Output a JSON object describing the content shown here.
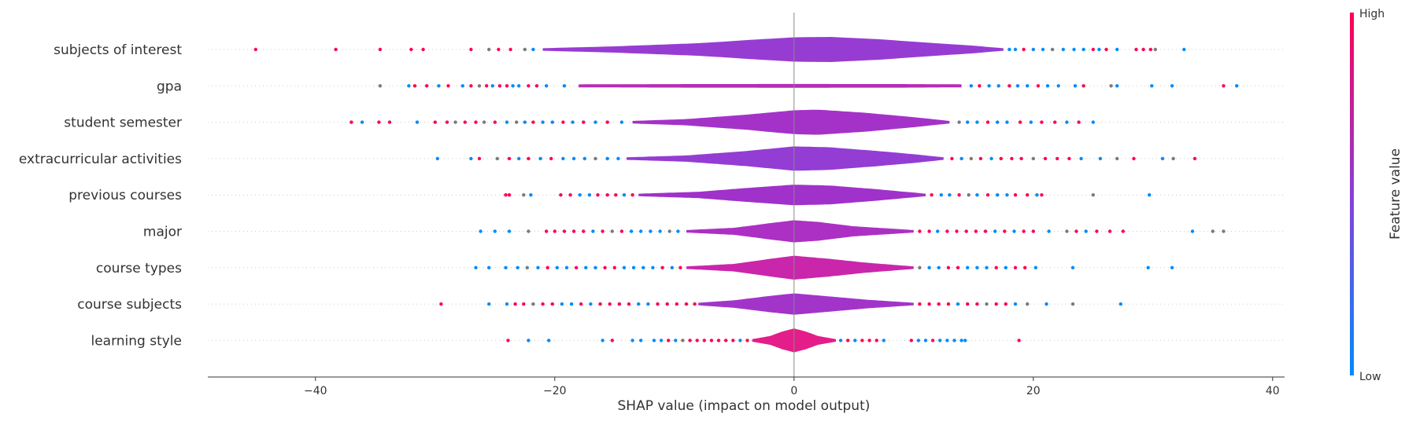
{
  "chart_data": {
    "type": "violin-summary",
    "title": "",
    "xlabel": "SHAP value (impact on model output)",
    "ylabel": "",
    "xlim": [
      -49,
      41
    ],
    "x_ticks": [
      -40,
      -20,
      0,
      20,
      40
    ],
    "x_tick_labels": [
      "−40",
      "−20",
      "0",
      "20",
      "40"
    ],
    "zero_line": true,
    "colorbar": {
      "title": "Feature value",
      "high_label": "High",
      "low_label": "Low",
      "low_color": "#008bfb",
      "high_color": "#ff0052"
    },
    "features": [
      {
        "name": "subjects of interest",
        "color": "#8e2bcf",
        "range": [
          -21,
          17.5
        ],
        "profile": [
          [
            -21,
            0.1
          ],
          [
            -15,
            0.25
          ],
          [
            -8,
            0.5
          ],
          [
            -3,
            0.8
          ],
          [
            0,
            0.97
          ],
          [
            3,
            1.0
          ],
          [
            7,
            0.82
          ],
          [
            11,
            0.55
          ],
          [
            15,
            0.3
          ],
          [
            17.5,
            0.1
          ]
        ],
        "low_outliers": [
          -45,
          -38.3,
          -34.6,
          -32,
          -31,
          -27,
          -25.5,
          -24.7,
          -23.7,
          -22.5,
          -21.8
        ],
        "high_outliers": [
          18,
          18.5,
          19.2,
          20,
          20.8,
          21.6,
          22.5,
          23.4,
          24.2,
          25,
          25.5,
          26.1,
          27,
          28.6,
          29.2,
          29.8,
          30.2,
          32.6
        ]
      },
      {
        "name": "gpa",
        "color": "#b01bb0",
        "range": [
          -18,
          14
        ],
        "profile": [
          [
            -18,
            0.12
          ],
          [
            -10,
            0.14
          ],
          [
            0,
            0.15
          ],
          [
            10,
            0.14
          ],
          [
            14,
            0.12
          ]
        ],
        "low_outliers": [
          -34.6,
          -32.2,
          -31.7,
          -30.7,
          -29.7,
          -28.9,
          -27.7,
          -27,
          -26.3,
          -25.7,
          -25.2,
          -24.6,
          -24,
          -23.5,
          -23,
          -22.2,
          -21.5,
          -20.7,
          -19.2
        ],
        "high_outliers": [
          14.8,
          15.5,
          16.3,
          17.1,
          18,
          18.7,
          19.5,
          20.4,
          21.2,
          22.1,
          23.5,
          24.2,
          26.5,
          27,
          29.9,
          31.6,
          35.9,
          37
        ]
      },
      {
        "name": "student semester",
        "color": "#9c21c4",
        "range": [
          -13.5,
          13
        ],
        "profile": [
          [
            -13.5,
            0.1
          ],
          [
            -9,
            0.25
          ],
          [
            -4,
            0.6
          ],
          [
            0,
            0.95
          ],
          [
            2,
            1.0
          ],
          [
            6,
            0.75
          ],
          [
            10,
            0.4
          ],
          [
            13,
            0.1
          ]
        ],
        "low_outliers": [
          -37,
          -36.1,
          -34.7,
          -33.8,
          -31.5,
          -30,
          -29,
          -28.3,
          -27.5,
          -26.6,
          -25.9,
          -25,
          -24,
          -23.2,
          -22.5,
          -21.8,
          -21,
          -20.2,
          -19.3,
          -18.5,
          -17.6,
          -16.6,
          -15.6,
          -14.4
        ],
        "high_outliers": [
          13.8,
          14.5,
          15.3,
          16.2,
          17,
          17.8,
          18.9,
          19.8,
          20.7,
          21.8,
          22.8,
          23.8,
          25
        ]
      },
      {
        "name": "extracurricular activities",
        "color": "#8a2dd0",
        "range": [
          -14,
          12.5
        ],
        "profile": [
          [
            -14,
            0.1
          ],
          [
            -9,
            0.25
          ],
          [
            -4,
            0.6
          ],
          [
            0,
            0.97
          ],
          [
            3,
            0.9
          ],
          [
            7,
            0.6
          ],
          [
            10,
            0.35
          ],
          [
            12.5,
            0.1
          ]
        ],
        "low_outliers": [
          -29.8,
          -27,
          -26.3,
          -24.8,
          -23.8,
          -23,
          -22.2,
          -21.2,
          -20.3,
          -19.3,
          -18.4,
          -17.5,
          -16.6,
          -15.6,
          -14.7
        ],
        "high_outliers": [
          13.2,
          14,
          14.8,
          15.6,
          16.5,
          17.3,
          18.2,
          19,
          20,
          21,
          22,
          23,
          24,
          25.6,
          27,
          28.4,
          30.8,
          31.7,
          33.5
        ]
      },
      {
        "name": "previous courses",
        "color": "#9820c6",
        "range": [
          -13,
          11
        ],
        "profile": [
          [
            -13,
            0.1
          ],
          [
            -8,
            0.25
          ],
          [
            -4,
            0.55
          ],
          [
            0,
            0.82
          ],
          [
            3,
            0.75
          ],
          [
            7,
            0.45
          ],
          [
            11,
            0.1
          ]
        ],
        "low_outliers": [
          -24.1,
          -23.8,
          -22.6,
          -22,
          -19.5,
          -18.7,
          -17.9,
          -17.1,
          -16.4,
          -15.6,
          -14.9,
          -14.2,
          -13.5
        ],
        "high_outliers": [
          11.5,
          12.3,
          13,
          13.8,
          14.6,
          15.3,
          16.2,
          17,
          17.8,
          18.5,
          19.5,
          20.3,
          20.7,
          25,
          29.7
        ]
      },
      {
        "name": "major",
        "color": "#a51ebf",
        "range": [
          -9,
          10
        ],
        "profile": [
          [
            -9,
            0.1
          ],
          [
            -5,
            0.28
          ],
          [
            -2,
            0.65
          ],
          [
            0,
            0.88
          ],
          [
            2,
            0.75
          ],
          [
            5,
            0.4
          ],
          [
            10,
            0.1
          ]
        ],
        "low_outliers": [
          -26.2,
          -25,
          -23.8,
          -22.2,
          -20.7,
          -20,
          -19.2,
          -18.4,
          -17.6,
          -16.8,
          -16,
          -15.2,
          -14.4,
          -13.6,
          -12.8,
          -12,
          -11.2,
          -10.4,
          -9.7
        ],
        "high_outliers": [
          10.5,
          11.3,
          12,
          12.8,
          13.6,
          14.4,
          15.2,
          16,
          16.8,
          17.6,
          18.4,
          19.2,
          20,
          21.3,
          22.8,
          23.6,
          24.4,
          25.3,
          26.4,
          27.5,
          33.3,
          35,
          35.9
        ]
      },
      {
        "name": "course types",
        "color": "#c514a4",
        "range": [
          -9,
          10
        ],
        "profile": [
          [
            -9,
            0.1
          ],
          [
            -5,
            0.3
          ],
          [
            -2,
            0.7
          ],
          [
            0,
            0.95
          ],
          [
            3,
            0.7
          ],
          [
            6,
            0.4
          ],
          [
            10,
            0.1
          ]
        ],
        "low_outliers": [
          -26.6,
          -25.5,
          -24.1,
          -23.1,
          -22.3,
          -21.4,
          -20.6,
          -19.8,
          -19,
          -18.2,
          -17.4,
          -16.6,
          -15.8,
          -15,
          -14.2,
          -13.4,
          -12.6,
          -11.8,
          -11,
          -10.2,
          -9.5
        ],
        "high_outliers": [
          10.5,
          11.3,
          12.1,
          12.9,
          13.7,
          14.5,
          15.3,
          16.1,
          16.9,
          17.7,
          18.5,
          19.3,
          20.2,
          23.3,
          29.6,
          31.6
        ]
      },
      {
        "name": "course subjects",
        "color": "#9a23c6",
        "range": [
          -8,
          10
        ],
        "profile": [
          [
            -8,
            0.1
          ],
          [
            -5,
            0.3
          ],
          [
            -2,
            0.65
          ],
          [
            0,
            0.85
          ],
          [
            3,
            0.6
          ],
          [
            6,
            0.35
          ],
          [
            10,
            0.1
          ]
        ],
        "low_outliers": [
          -29.5,
          -25.5,
          -24,
          -23.3,
          -22.6,
          -21.8,
          -21,
          -20.2,
          -19.4,
          -18.6,
          -17.8,
          -17,
          -16.2,
          -15.4,
          -14.6,
          -13.8,
          -13,
          -12.2,
          -11.4,
          -10.6,
          -9.8,
          -9,
          -8.3
        ],
        "high_outliers": [
          10.5,
          11.3,
          12.1,
          12.9,
          13.7,
          14.5,
          15.3,
          16.1,
          16.9,
          17.7,
          18.5,
          19.5,
          21.1,
          23.3,
          27.3
        ]
      },
      {
        "name": "learning style",
        "color": "#e20a80",
        "range": [
          -3.5,
          3.5
        ],
        "profile": [
          [
            -3.5,
            0.1
          ],
          [
            -2,
            0.35
          ],
          [
            -1,
            0.7
          ],
          [
            0,
            0.95
          ],
          [
            1,
            0.7
          ],
          [
            2,
            0.35
          ],
          [
            3.5,
            0.1
          ]
        ],
        "low_outliers": [
          -23.9,
          -22.2,
          -20.5,
          -16,
          -15.2,
          -13.5,
          -12.8,
          -11.7,
          -11.1,
          -10.5,
          -9.9,
          -9.3,
          -8.7,
          -8.1,
          -7.5,
          -6.9,
          -6.3,
          -5.7,
          -5.1,
          -4.5,
          -3.9
        ],
        "high_outliers": [
          3.9,
          4.5,
          5.1,
          5.7,
          6.3,
          6.9,
          7.5,
          9.8,
          10.4,
          11,
          11.6,
          12.2,
          12.8,
          13.4,
          14,
          14.3,
          18.8
        ]
      }
    ]
  }
}
